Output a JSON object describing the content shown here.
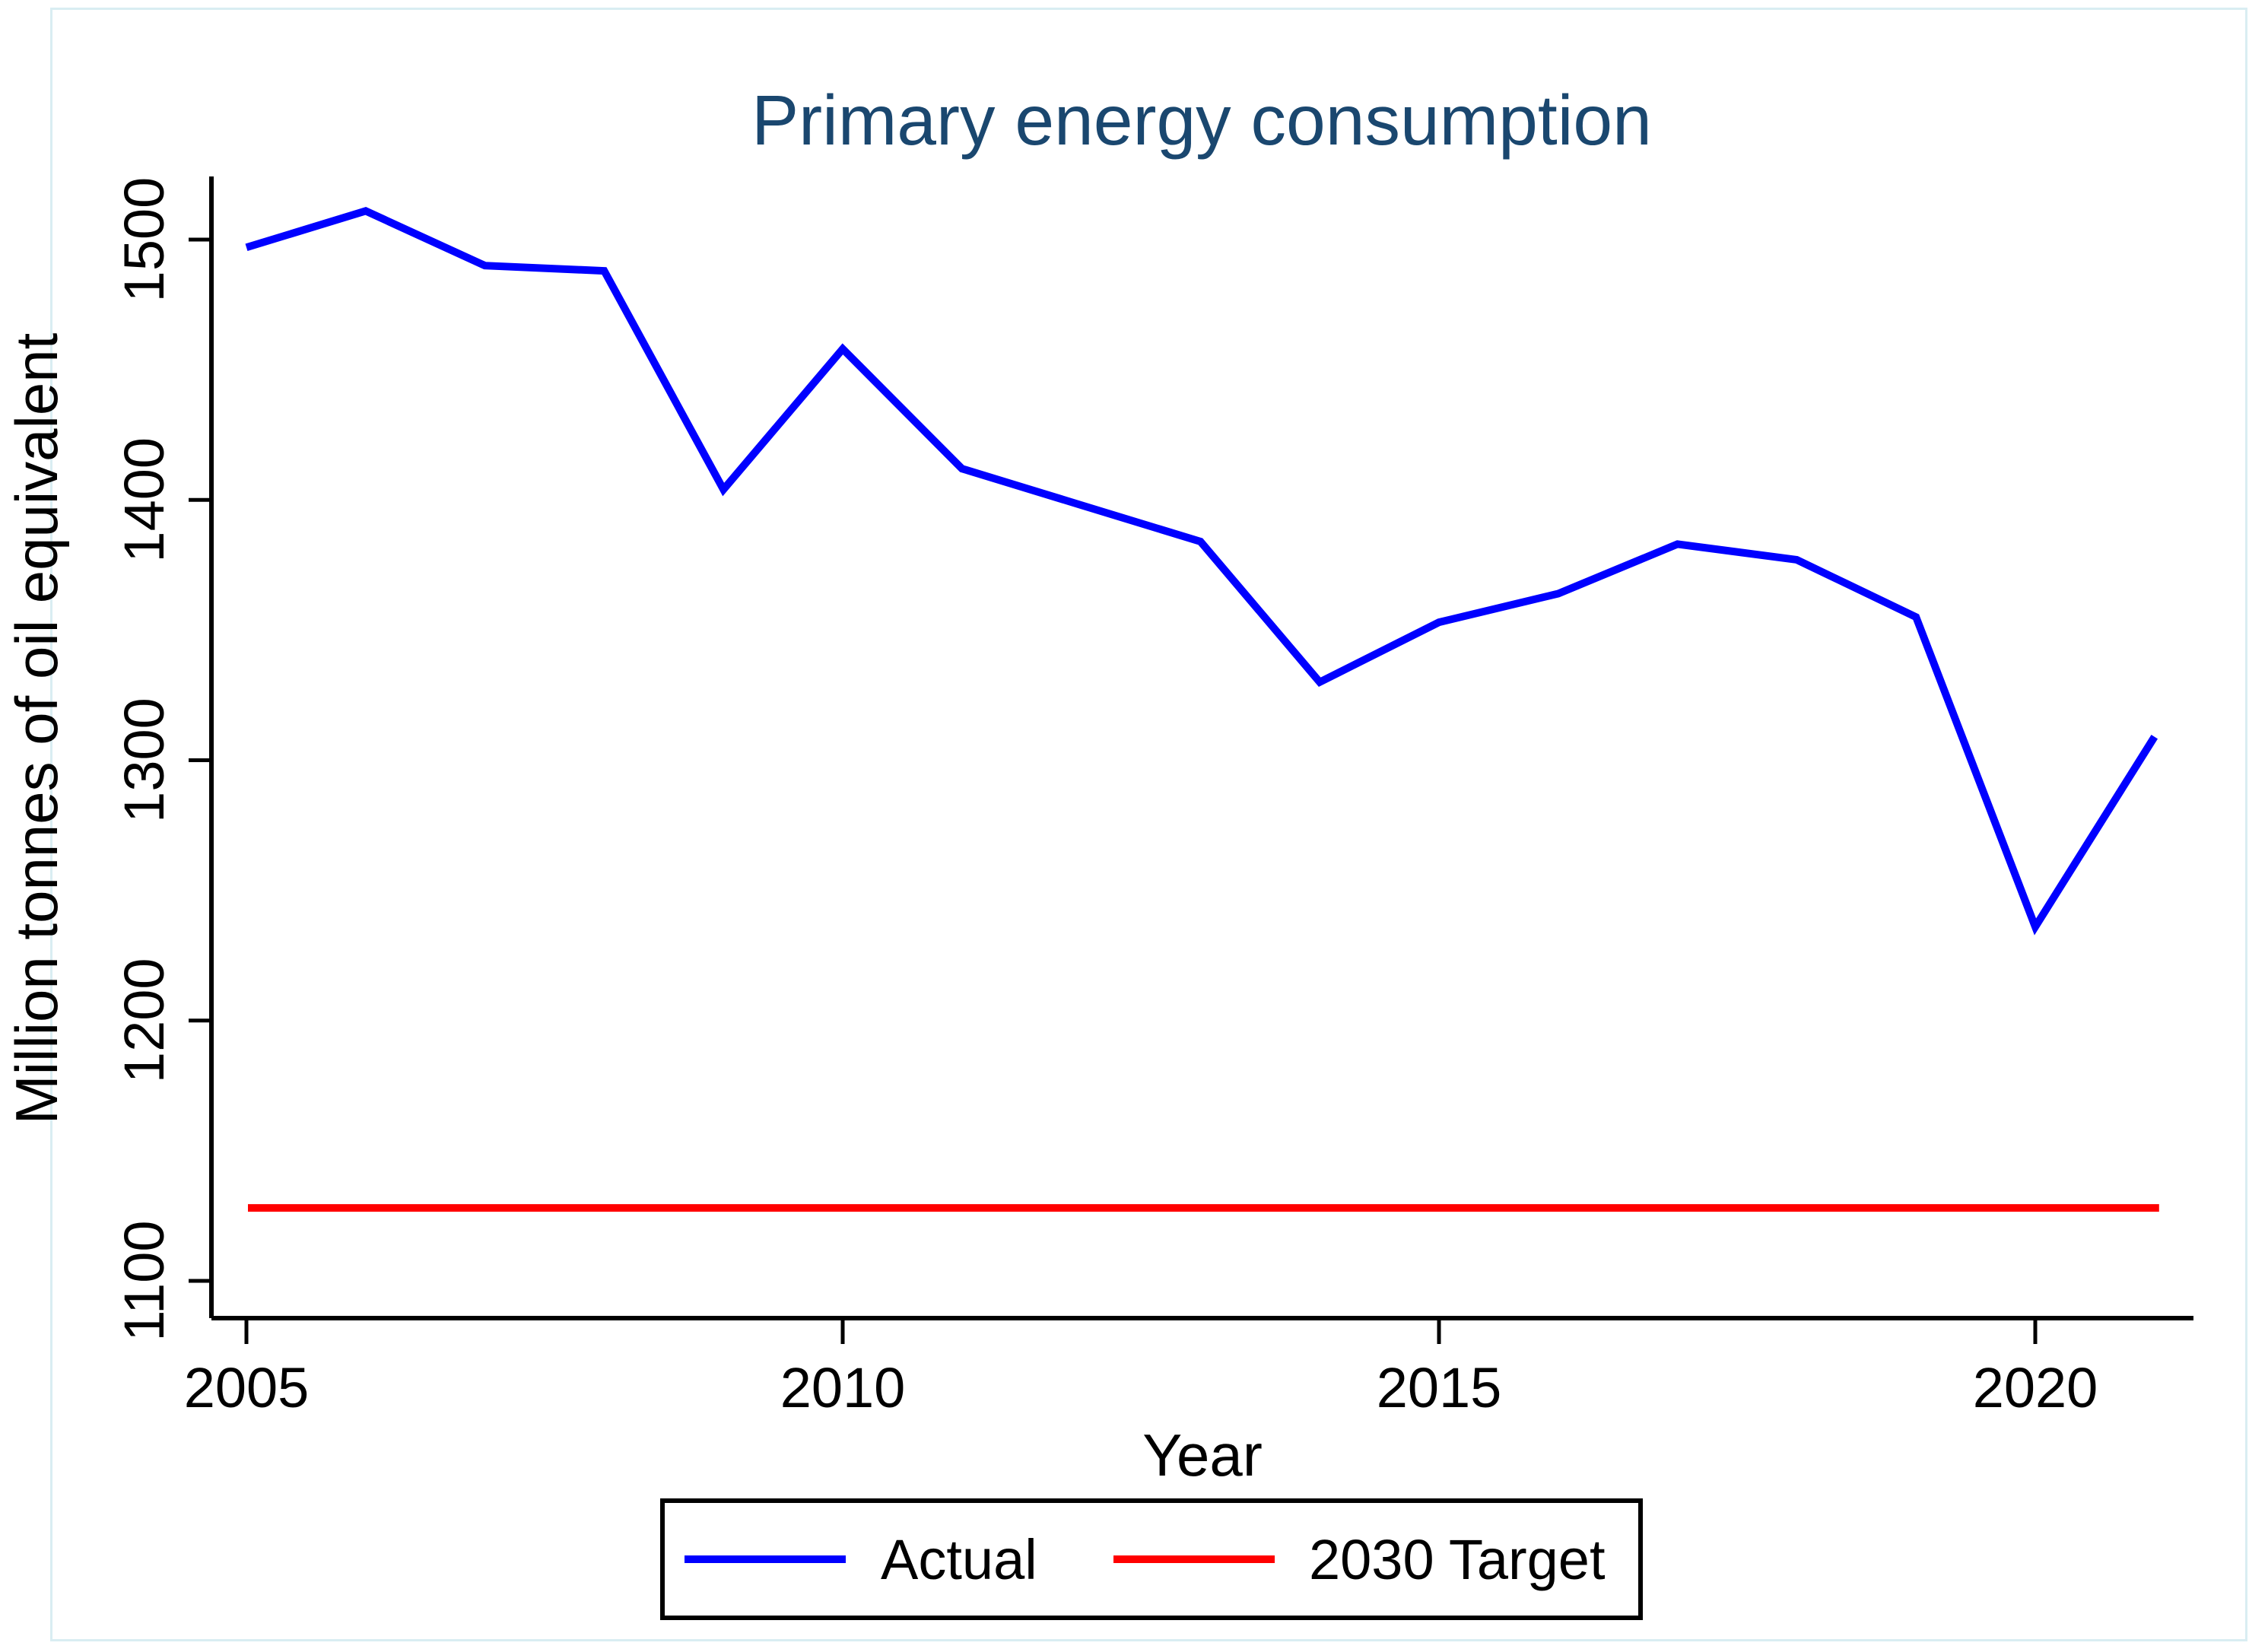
{
  "page": {
    "background_color": "#ffffff",
    "frame_color": "#d9edf2"
  },
  "chart_data": {
    "type": "line",
    "title": "Primary energy consumption",
    "title_color": "#1a476f",
    "xlabel": "Year",
    "ylabel": "Million tonnes of oil equivalent",
    "x": [
      2005,
      2006,
      2007,
      2008,
      2009,
      2010,
      2011,
      2012,
      2013,
      2014,
      2015,
      2016,
      2017,
      2018,
      2019,
      2020,
      2021
    ],
    "series": [
      {
        "name": "Actual",
        "color": "#0000ff",
        "values": [
          1497,
          1511,
          1490,
          1488,
          1404,
          1458,
          1412,
          1398,
          1384,
          1330,
          1353,
          1364,
          1383,
          1377,
          1355,
          1236,
          1309
        ]
      },
      {
        "name": "2030 Target",
        "color": "#ff0000",
        "constant_value": 1128,
        "x_range": [
          2005,
          2021
        ]
      }
    ],
    "y_ticks": [
      1100,
      1200,
      1300,
      1400,
      1500
    ],
    "y_tick_labels": [
      "1100",
      "1200",
      "1300",
      "1400",
      "1500"
    ],
    "x_ticks": [
      2005,
      2010,
      2015,
      2020
    ],
    "x_tick_labels": [
      "2005",
      "2010",
      "2015",
      "2020"
    ],
    "ylim": [
      1100,
      1500
    ],
    "grid": "off",
    "legend": {
      "position": "bottom",
      "items": [
        {
          "label": "Actual",
          "color": "#0000ff"
        },
        {
          "label": "2030 Target",
          "color": "#ff0000"
        }
      ]
    }
  }
}
